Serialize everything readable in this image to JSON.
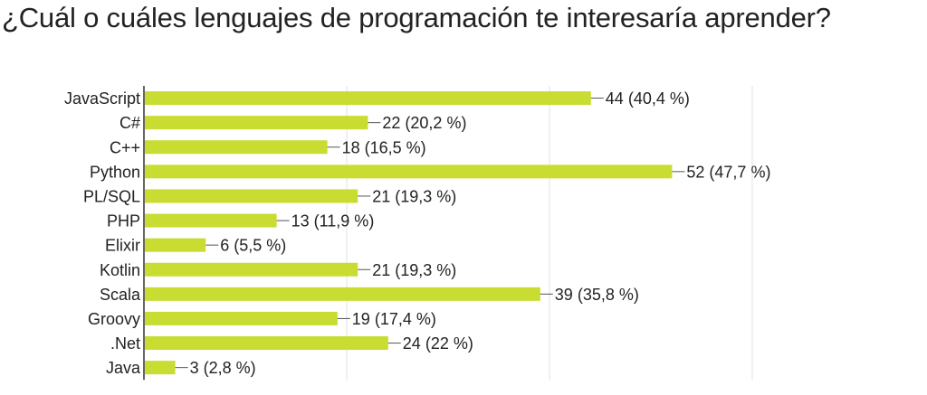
{
  "chart_data": {
    "type": "bar",
    "orientation": "horizontal",
    "title": "¿Cuál o cuáles lenguajes de programación te interesaría aprender?",
    "xlabel": "",
    "ylabel": "",
    "categories": [
      "JavaScript",
      "C#",
      "C++",
      "Python",
      "PL/SQL",
      "PHP",
      "Elixir",
      "Kotlin",
      "Scala",
      "Groovy",
      ".Net",
      "Java"
    ],
    "values": [
      44,
      22,
      18,
      52,
      21,
      13,
      6,
      21,
      39,
      19,
      24,
      3
    ],
    "value_labels": [
      "44 (40,4 %)",
      "22 (20,2 %)",
      "18 (16,5 %)",
      "52 (47,7 %)",
      "21 (19,3 %)",
      "13 (11,9 %)",
      "6 (5,5 %)",
      "21 (19,3 %)",
      "39 (35,8 %)",
      "19 (17,4 %)",
      "24 (22 %)",
      "3 (2,8 %)"
    ],
    "xlim": [
      0,
      60
    ],
    "grid": true,
    "bar_color": "#c8dc32"
  }
}
